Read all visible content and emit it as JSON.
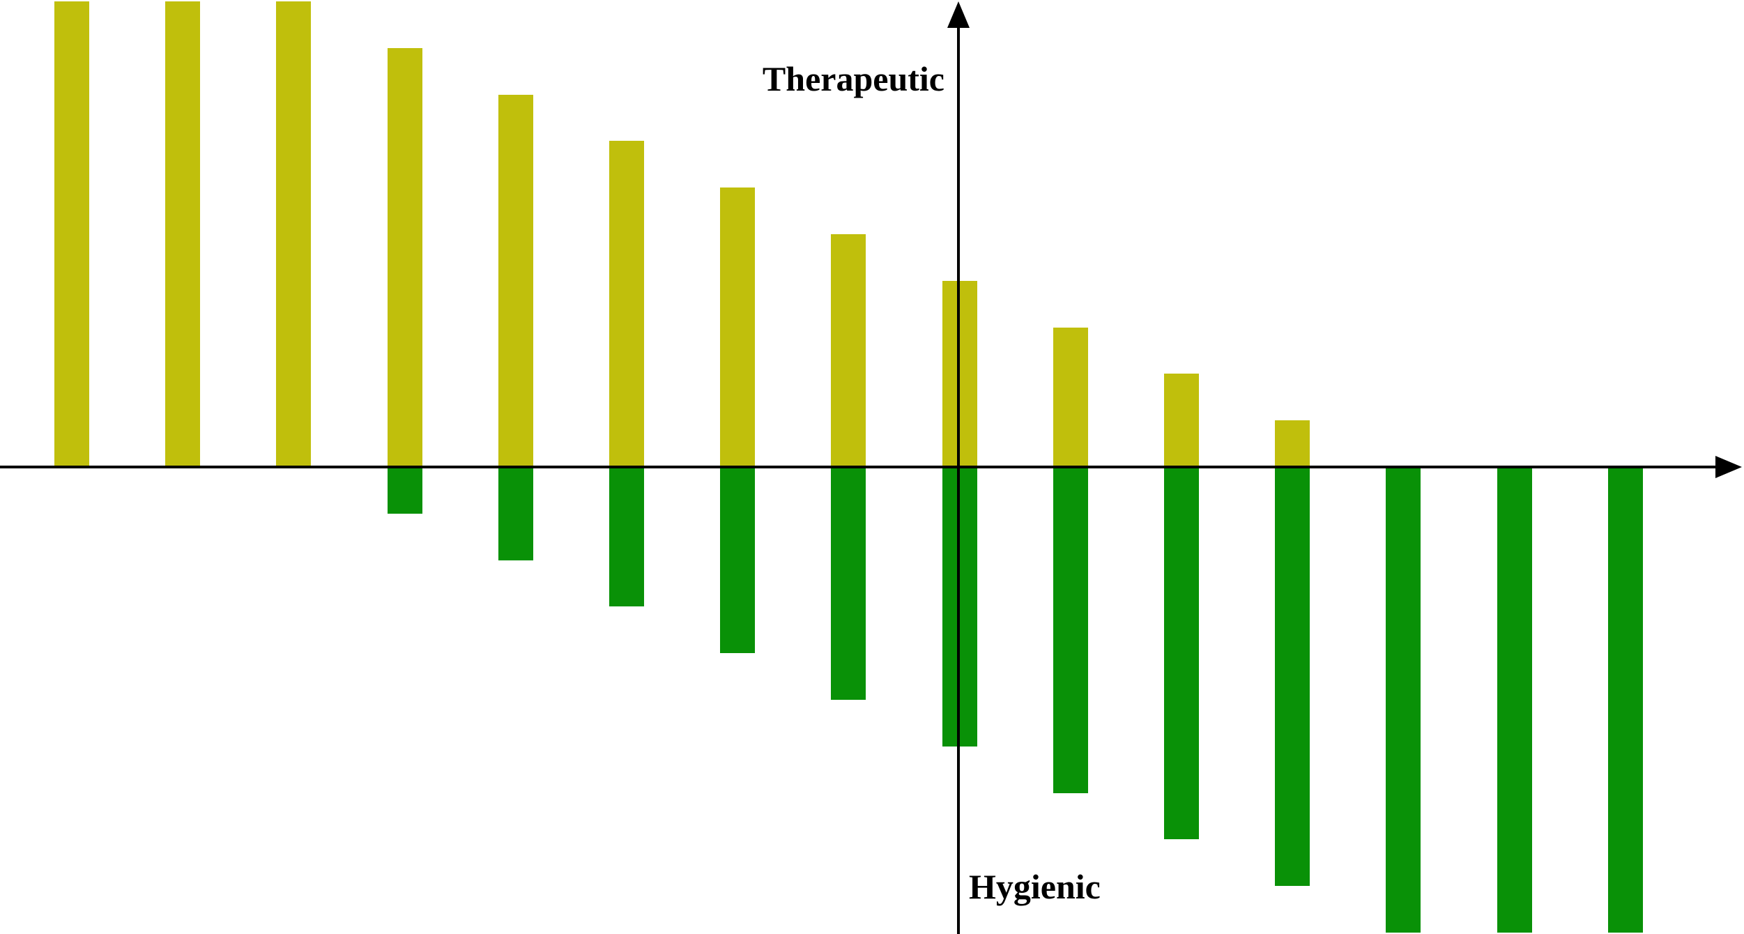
{
  "chart_data": {
    "type": "bar",
    "title": "",
    "x_count": 15,
    "ylim": [
      -10,
      10
    ],
    "grid": false,
    "legend": "none",
    "axis_tick_labels": "none",
    "axis_labels": {
      "upper": "Therapeutic",
      "lower": "Hygienic"
    },
    "series": [
      {
        "name": "Therapeutic",
        "direction": "up",
        "color": "#c0bf0c",
        "values": [
          10,
          10,
          10,
          9,
          8,
          7,
          6,
          5,
          4,
          3,
          2,
          1,
          0,
          0,
          0
        ]
      },
      {
        "name": "Hygienic",
        "direction": "down",
        "color": "#099107",
        "values": [
          0,
          0,
          0,
          1,
          2,
          3,
          4,
          5,
          6,
          7,
          8,
          9,
          10,
          10,
          10
        ]
      }
    ]
  },
  "colors": {
    "axis": "#000000",
    "background": "#ffffff",
    "therapeutic_bar": "#c0bf0c",
    "hygienic_bar": "#099107"
  }
}
